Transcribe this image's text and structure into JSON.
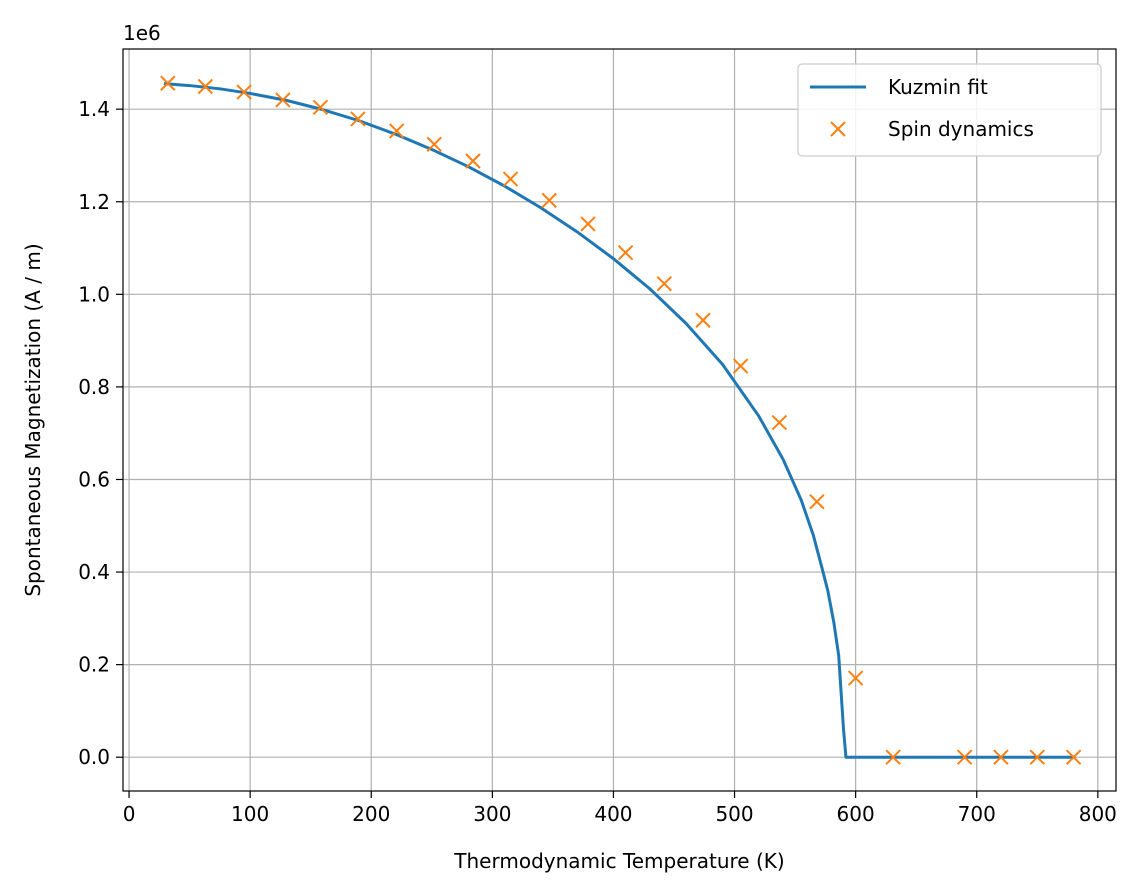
{
  "chart_data": {
    "type": "line",
    "xlabel": "Thermodynamic Temperature (K)",
    "ylabel": "Spontaneous Magnetization (A / m)",
    "y_offset_label": "1e6",
    "xlim": [
      -5,
      815
    ],
    "ylim": [
      -0.073,
      1.53
    ],
    "x_ticks": [
      0,
      100,
      200,
      300,
      400,
      500,
      600,
      700,
      800
    ],
    "x_tick_labels": [
      "0",
      "100",
      "200",
      "300",
      "400",
      "500",
      "600",
      "700",
      "800"
    ],
    "y_ticks": [
      0.0,
      0.2,
      0.4,
      0.6,
      0.8,
      1.0,
      1.2,
      1.4
    ],
    "y_tick_labels": [
      "0.0",
      "0.2",
      "0.4",
      "0.6",
      "0.8",
      "1.0",
      "1.2",
      "1.4"
    ],
    "grid": true,
    "legend_position": "top-right",
    "series": [
      {
        "name": "Kuzmin fit",
        "kind": "line",
        "color": "#1f77b4",
        "x": [
          30,
          50,
          75,
          100,
          130,
          160,
          190,
          220,
          250,
          280,
          310,
          340,
          370,
          400,
          430,
          460,
          490,
          520,
          540,
          555,
          565,
          572,
          577,
          582,
          586,
          590,
          592,
          600,
          650,
          700,
          750,
          780
        ],
        "y": [
          1.455,
          1.451,
          1.444,
          1.434,
          1.419,
          1.399,
          1.375,
          1.346,
          1.313,
          1.276,
          1.234,
          1.187,
          1.135,
          1.077,
          1.012,
          0.937,
          0.849,
          0.737,
          0.644,
          0.556,
          0.48,
          0.411,
          0.36,
          0.291,
          0.22,
          0.06,
          0.0,
          0.0,
          0.0,
          0.0,
          0.0,
          0.0
        ]
      },
      {
        "name": "Spin dynamics",
        "kind": "scatter",
        "marker": "x",
        "color": "#ff7f0e",
        "x": [
          32,
          63,
          95,
          127,
          158,
          189,
          221,
          252,
          284,
          315,
          347,
          379,
          410,
          442,
          474,
          505,
          537,
          568,
          600,
          631,
          690,
          720,
          750,
          780
        ],
        "y": [
          1.456,
          1.449,
          1.437,
          1.42,
          1.404,
          1.379,
          1.353,
          1.324,
          1.288,
          1.249,
          1.203,
          1.152,
          1.09,
          1.023,
          0.944,
          0.845,
          0.723,
          0.552,
          0.171,
          0.0,
          0.0,
          0.0,
          0.0,
          0.0
        ]
      }
    ]
  }
}
